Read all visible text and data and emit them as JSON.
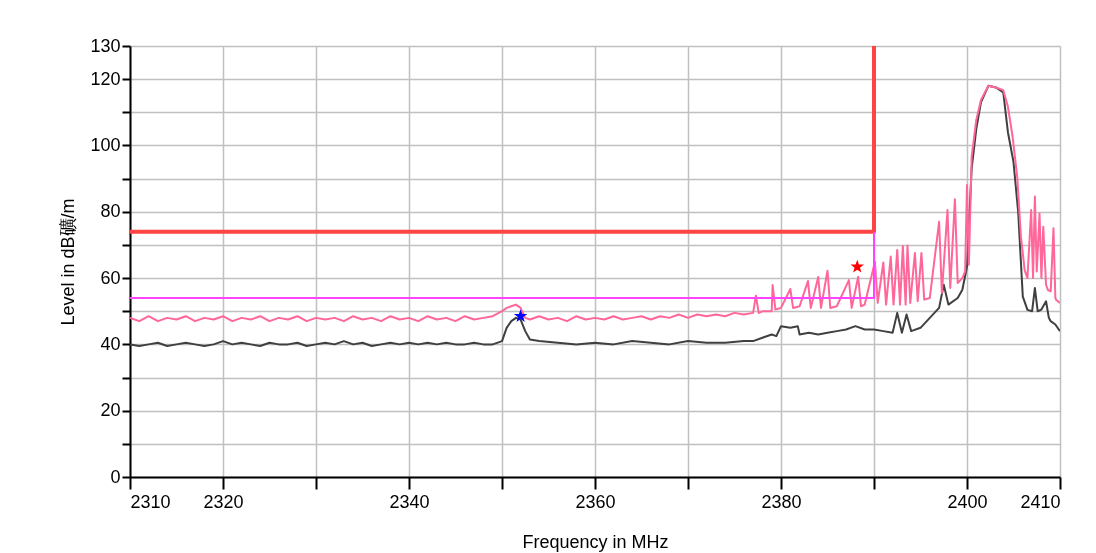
{
  "chart_data": {
    "type": "line",
    "xlabel": "Frequency in MHz",
    "ylabel": "Level in dB礦/m",
    "xlim": [
      2310,
      2410
    ],
    "ylim": [
      0,
      130
    ],
    "xticks": [
      2310,
      2320,
      {
        "value": 2330,
        "label": null
      },
      2340,
      {
        "value": 2350,
        "label": null
      },
      2360,
      {
        "value": 2370,
        "label": null
      },
      2380,
      {
        "value": 2390,
        "label": null
      },
      2400,
      2410
    ],
    "yticks": [
      0,
      {
        "value": 10,
        "label": null
      },
      20,
      {
        "value": 30,
        "label": null
      },
      40,
      {
        "value": 50,
        "label": null
      },
      60,
      {
        "value": 70,
        "label": null
      },
      80,
      {
        "value": 90,
        "label": null
      },
      100,
      {
        "value": 110,
        "label": null
      },
      120,
      130
    ],
    "grid": true,
    "line_style": "solid",
    "marker": "none",
    "series": [
      {
        "color": "#404040",
        "x": [
          2310,
          2311,
          2312,
          2313,
          2314,
          2315,
          2316,
          2317,
          2318,
          2319,
          2320,
          2321,
          2322,
          2323,
          2324,
          2325,
          2326,
          2327,
          2328,
          2329,
          2330,
          2331,
          2332,
          2333,
          2334,
          2335,
          2336,
          2337,
          2338,
          2339,
          2340,
          2341,
          2342,
          2343,
          2344,
          2345,
          2346,
          2347,
          2348,
          2349,
          2350,
          2350.5,
          2351,
          2351.5,
          2352,
          2352.5,
          2353,
          2354,
          2356,
          2358,
          2360,
          2362,
          2364,
          2366,
          2368,
          2370,
          2372,
          2374,
          2376,
          2377,
          2378,
          2379,
          2379.5,
          2380,
          2381,
          2381.8,
          2382,
          2383,
          2384,
          2385,
          2386,
          2387,
          2388,
          2389,
          2390,
          2391,
          2392,
          2392.5,
          2393,
          2393.5,
          2394,
          2395,
          2396,
          2397,
          2397.5,
          2398,
          2399,
          2399.5,
          2400,
          2400.5,
          2401,
          2401.5,
          2402.3,
          2403.1,
          2403.9,
          2404.4,
          2405,
          2405.5,
          2406,
          2406.5,
          2407,
          2407.3,
          2407.6,
          2408,
          2408.5,
          2408.8,
          2409,
          2409.5,
          2410
        ],
        "values": [
          40,
          39.5,
          40,
          40.5,
          39.5,
          40,
          40.5,
          40,
          39.5,
          40,
          41,
          40,
          40.5,
          40,
          39.5,
          40.5,
          40,
          40,
          40.5,
          39.5,
          40,
          40.5,
          40,
          41,
          40,
          40.5,
          39.5,
          40,
          40.5,
          40,
          40.5,
          40,
          40.5,
          40,
          40.5,
          40,
          40,
          40.5,
          40,
          40,
          41,
          45,
          47,
          48,
          47.5,
          44,
          41.5,
          41,
          40.5,
          40,
          40.5,
          40,
          41,
          40.5,
          40,
          41,
          40.5,
          40.5,
          41,
          41,
          42,
          43,
          42.5,
          45.5,
          45,
          45.5,
          43,
          43.5,
          43,
          43.5,
          44,
          44.5,
          45.5,
          44.5,
          44.5,
          44,
          43.5,
          49.5,
          43.5,
          49,
          44,
          45,
          48,
          51,
          58,
          52,
          54,
          56.5,
          63.4,
          93,
          105,
          113,
          118,
          117.5,
          116,
          104,
          95,
          80,
          54.4,
          50.4,
          50,
          57,
          50,
          50.5,
          53,
          48,
          47,
          46,
          44
        ]
      },
      {
        "color": "#ff6699",
        "x": [
          2310,
          2311,
          2312,
          2313,
          2314,
          2315,
          2316,
          2317,
          2318,
          2319,
          2320,
          2321,
          2322,
          2323,
          2324,
          2325,
          2326,
          2327,
          2328,
          2329,
          2330,
          2331,
          2332,
          2333,
          2334,
          2335,
          2336,
          2337,
          2338,
          2339,
          2340,
          2341,
          2342,
          2343,
          2344,
          2345,
          2346,
          2347,
          2348,
          2349,
          2350,
          2350.5,
          2351,
          2351.5,
          2352,
          2352.5,
          2353,
          2354,
          2355,
          2356,
          2357,
          2358,
          2359,
          2360,
          2361,
          2362,
          2363,
          2364,
          2365,
          2366,
          2367,
          2368,
          2369,
          2370,
          2371,
          2372,
          2373,
          2374,
          2375,
          2376,
          2377,
          2377.3,
          2377.6,
          2378,
          2379,
          2379.1,
          2379.4,
          2380,
          2381,
          2381.3,
          2382,
          2382.9,
          2383.2,
          2384,
          2384.3,
          2385,
          2385.3,
          2386,
          2387.3,
          2387.6,
          2388.3,
          2388.6,
          2389,
          2390.1,
          2390.4,
          2391,
          2391.3,
          2391.8,
          2392.1,
          2392.5,
          2392.8,
          2393.1,
          2393.4,
          2393.6,
          2393.9,
          2394.4,
          2394.7,
          2395.1,
          2395.4,
          2396,
          2397,
          2397.3,
          2397.9,
          2398.2,
          2398.7,
          2399,
          2399.5,
          2399.8,
          2400,
          2400.2,
          2400.5,
          2401,
          2401.5,
          2402.3,
          2403.1,
          2403.9,
          2404.4,
          2404.9,
          2405.4,
          2405.8,
          2406.2,
          2406.5,
          2406.9,
          2407.1,
          2407.3,
          2407.5,
          2407.8,
          2408,
          2408.2,
          2408.5,
          2408.7,
          2409,
          2409.3,
          2409.5,
          2409.6,
          2410
        ],
        "values": [
          48,
          47,
          48.5,
          47,
          48,
          47.5,
          48.5,
          47,
          48,
          47.5,
          48.5,
          47,
          48,
          47.5,
          48.5,
          47,
          48,
          47.5,
          48.5,
          47,
          48,
          47.5,
          48,
          47,
          48.5,
          47.5,
          48,
          47,
          48.5,
          47.5,
          48,
          47,
          48.5,
          47.5,
          48,
          47,
          48.5,
          47.5,
          48,
          48.5,
          50,
          51,
          51.5,
          52,
          51,
          48,
          47.5,
          48.5,
          47.5,
          48,
          47,
          48.5,
          47.5,
          48,
          47.5,
          48.5,
          47.5,
          48,
          48.5,
          47.5,
          48.5,
          48,
          49,
          48,
          49,
          48.5,
          49,
          48.5,
          49.5,
          49,
          49.5,
          54.7,
          49.5,
          50,
          50,
          57.9,
          50.5,
          51,
          56.7,
          51,
          51.5,
          59.1,
          51,
          60.3,
          51,
          62.2,
          51,
          51.5,
          59.4,
          51,
          60.4,
          51.5,
          52,
          64.9,
          52.5,
          64.7,
          52,
          66.5,
          52,
          68.5,
          52,
          69.7,
          52,
          69.8,
          52.5,
          67.6,
          53,
          67.6,
          53.5,
          54,
          77,
          55.5,
          80.5,
          57,
          83.8,
          58.5,
          60,
          62,
          88.1,
          64,
          96.6,
          107.7,
          113.7,
          118,
          117.5,
          116.7,
          111.7,
          102.7,
          90.6,
          72.5,
          62.4,
          60,
          80.5,
          60,
          84.6,
          62,
          79.5,
          60,
          75.5,
          58,
          56.4,
          56,
          75,
          54,
          53.4,
          52.5
        ]
      },
      {
        "type": "line",
        "color": "#ff4444",
        "x": [
          2310,
          2390,
          2390
        ],
        "values": [
          74,
          74,
          130
        ]
      },
      {
        "type": "line",
        "color": "#ff44ff",
        "x": [
          2310,
          2390,
          2390
        ],
        "values": [
          54,
          54,
          74
        ]
      },
      {
        "type": "scatter",
        "color": "#0000ff",
        "marker": "star",
        "x": [
          2352
        ],
        "values": [
          48.5
        ]
      },
      {
        "type": "scatter",
        "color": "#ff0000",
        "marker": "star",
        "x": [
          2388.2
        ],
        "values": [
          63.4
        ]
      }
    ]
  }
}
